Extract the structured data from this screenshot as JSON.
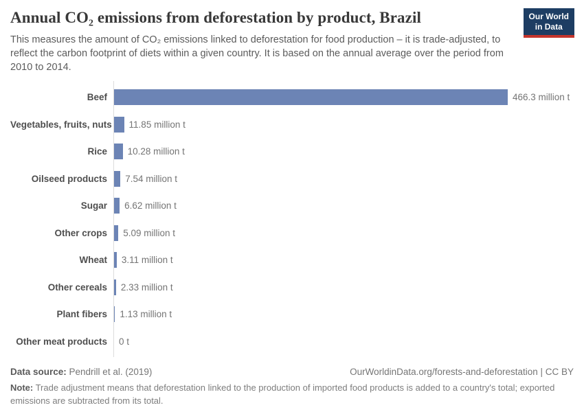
{
  "header": {
    "title": "Annual CO₂ emissions from deforestation by product, Brazil",
    "subtitle": "This measures the amount of CO₂ emissions linked to deforestation for food production – it is trade-adjusted, to reflect the carbon footprint of diets within a given country. It is based on the annual average over the period from 2010 to 2014.",
    "logo_line1": "Our World",
    "logo_line2": "in Data"
  },
  "chart_data": {
    "type": "bar",
    "orientation": "horizontal",
    "title": "Annual CO₂ emissions from deforestation by product, Brazil",
    "unit": "million t",
    "categories": [
      "Beef",
      "Vegetables, fruits, nuts",
      "Rice",
      "Oilseed products",
      "Sugar",
      "Other crops",
      "Wheat",
      "Other cereals",
      "Plant fibers",
      "Other meat products"
    ],
    "values": [
      466.3,
      11.85,
      10.28,
      7.54,
      6.62,
      5.09,
      3.11,
      2.33,
      1.13,
      0
    ],
    "value_labels": [
      "466.3 million t",
      "11.85 million t",
      "10.28 million t",
      "7.54 million t",
      "6.62 million t",
      "5.09 million t",
      "3.11 million t",
      "2.33 million t",
      "1.13 million t",
      "0 t"
    ],
    "xlim": [
      0,
      466.3
    ],
    "grid": false,
    "legend": "none",
    "bar_color": "#6c84b5"
  },
  "footer": {
    "data_source_label": "Data source:",
    "data_source_value": " Pendrill et al. (2019)",
    "link_text": "OurWorldinData.org/forests-and-deforestation | CC BY",
    "note_label": "Note:",
    "note_text": " Trade adjustment means that deforestation linked to the production of imported food products is added to a country's total; exported emissions are subtracted from its total."
  },
  "colors": {
    "bar": "#6c84b5",
    "logo_bg": "#1d3d63",
    "logo_stripe": "#c4352c",
    "title_text": "#383838",
    "subtitle_text": "#5b5b5b",
    "axis_line": "#dcdcdc"
  }
}
